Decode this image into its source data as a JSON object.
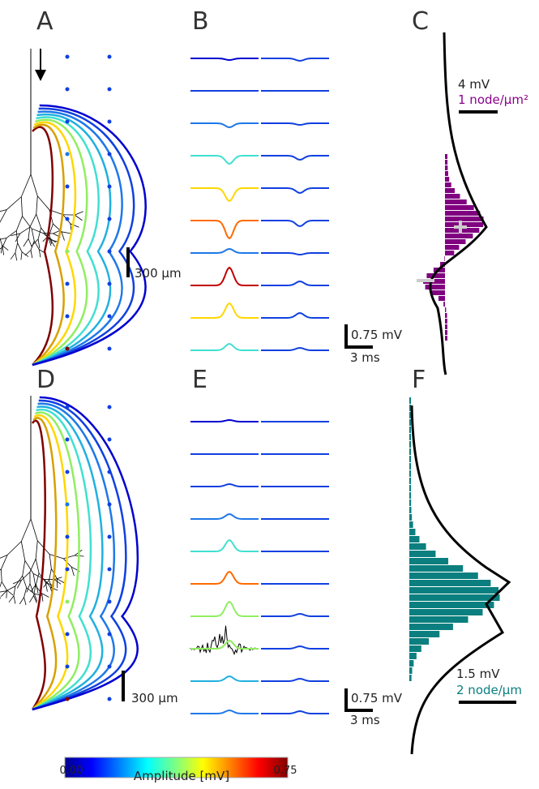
{
  "panels": {
    "a": "A",
    "b": "B",
    "c": "C",
    "d": "D",
    "e": "E",
    "f": "F"
  },
  "scalebars": {
    "a_length": "300 µm",
    "c_voltage": "4 mV",
    "c_density": "1 node/µm²",
    "b_voltage": "0.75 mV",
    "b_time": "3 ms",
    "e_voltage": "0.75 mV",
    "e_time": "3 ms",
    "d_length": "300 µm",
    "f_voltage": "1.5 mV",
    "f_density": "2 node/µm"
  },
  "colorbar": {
    "min": "0.00",
    "max": "0.75",
    "label": "Amplitude [mV]"
  }
}
